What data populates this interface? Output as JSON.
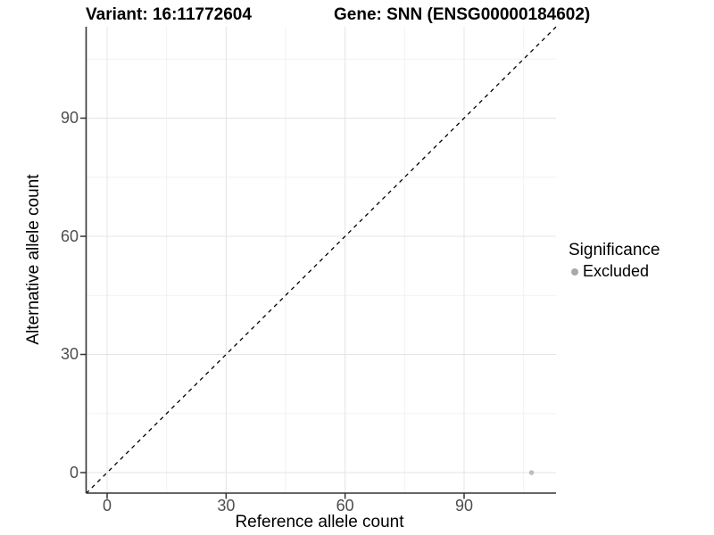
{
  "titles": {
    "variant": "Variant: 16:11772604",
    "gene": "Gene: SNN (ENSG00000184602)"
  },
  "legend": {
    "title": "Significance",
    "items": [
      {
        "label": "Excluded",
        "dot_color": "#A9A9A9"
      }
    ]
  },
  "colors": {
    "point": "#BEBEBE",
    "grid_major": "#E4E4E4",
    "grid_minor": "#F2F2F2",
    "axis_line": "#333333",
    "tick_mark": "#333333",
    "dashed_line": "#000000"
  },
  "chart_data": {
    "type": "scatter",
    "title": "Variant: 16:11772604   Gene: SNN (ENSG00000184602)",
    "xlabel": "Reference allele count",
    "ylabel": "Alternative allele count",
    "xlim": [
      -5.3,
      113.2
    ],
    "ylim": [
      -5.3,
      113.2
    ],
    "x_ticks": [
      0,
      30,
      60,
      90
    ],
    "y_ticks": [
      0,
      30,
      60,
      90
    ],
    "x_minor_ticks": [
      15,
      45,
      75,
      105
    ],
    "y_minor_ticks": [
      15,
      45,
      75,
      105
    ],
    "grid": true,
    "legend_position": "right",
    "points": [
      {
        "x": 107,
        "y": 0,
        "series": "Excluded",
        "color": "#BEBEBE"
      }
    ],
    "reference_line": {
      "type": "identity",
      "slope": 1,
      "intercept": 0,
      "style": "dashed"
    }
  }
}
